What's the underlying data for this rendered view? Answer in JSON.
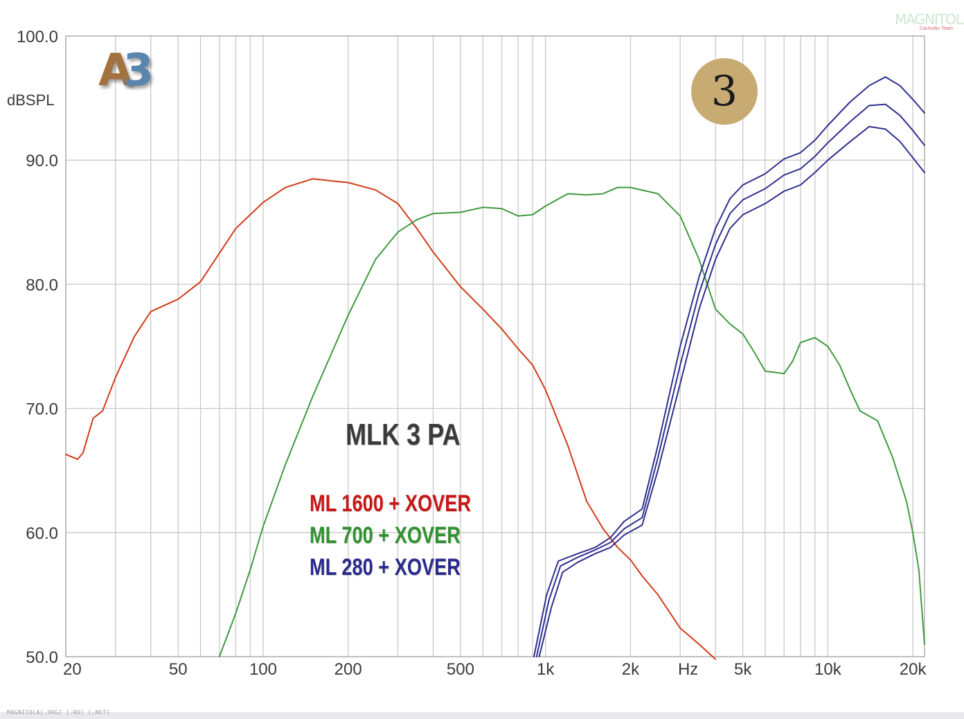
{
  "chart_data": {
    "type": "line",
    "x_scale": "log",
    "xlim": [
      20,
      22000
    ],
    "ylim": [
      50,
      100
    ],
    "grid": true,
    "ylabel": "dBSPL",
    "xlabel": "Hz",
    "x_ticks": [
      20,
      50,
      100,
      200,
      500,
      1000,
      2000,
      5000,
      10000,
      20000
    ],
    "x_tick_labels": [
      "20",
      "50",
      "100",
      "200",
      "500",
      "1k",
      "2k",
      "5k",
      "10k",
      "20k"
    ],
    "y_ticks": [
      50,
      60,
      70,
      80,
      90,
      100
    ],
    "y_tick_labels": [
      "50.0",
      "60.0",
      "70.0",
      "80.0",
      "90.0",
      "100.0"
    ],
    "annotation": "MLK 3 PA",
    "series": [
      {
        "name": "ML 1600 + XOVER",
        "color": "#d23a17",
        "points": [
          [
            20,
            66.3
          ],
          [
            22,
            65.9
          ],
          [
            23,
            66.4
          ],
          [
            25,
            69.2
          ],
          [
            27,
            69.8
          ],
          [
            30,
            72.5
          ],
          [
            35,
            75.8
          ],
          [
            40,
            77.8
          ],
          [
            50,
            78.8
          ],
          [
            60,
            80.2
          ],
          [
            70,
            82.5
          ],
          [
            80,
            84.5
          ],
          [
            100,
            86.6
          ],
          [
            120,
            87.8
          ],
          [
            150,
            88.5
          ],
          [
            180,
            88.3
          ],
          [
            200,
            88.2
          ],
          [
            250,
            87.6
          ],
          [
            300,
            86.5
          ],
          [
            350,
            84.5
          ],
          [
            400,
            82.6
          ],
          [
            500,
            79.8
          ],
          [
            600,
            78.0
          ],
          [
            700,
            76.4
          ],
          [
            800,
            74.8
          ],
          [
            900,
            73.5
          ],
          [
            1000,
            71.5
          ],
          [
            1200,
            67.0
          ],
          [
            1400,
            62.5
          ],
          [
            1600,
            60.3
          ],
          [
            1800,
            58.8
          ],
          [
            2000,
            57.8
          ],
          [
            2200,
            56.5
          ],
          [
            2500,
            55.0
          ],
          [
            3000,
            52.3
          ],
          [
            3500,
            51.0
          ],
          [
            4000,
            49.8
          ]
        ]
      },
      {
        "name": "ML 700 + XOVER",
        "color": "#3f9a3f",
        "points": [
          [
            70,
            50.0
          ],
          [
            80,
            53.5
          ],
          [
            90,
            57.0
          ],
          [
            100,
            60.5
          ],
          [
            120,
            65.5
          ],
          [
            150,
            71.0
          ],
          [
            200,
            77.5
          ],
          [
            250,
            82.0
          ],
          [
            300,
            84.2
          ],
          [
            350,
            85.2
          ],
          [
            400,
            85.7
          ],
          [
            500,
            85.8
          ],
          [
            600,
            86.2
          ],
          [
            700,
            86.1
          ],
          [
            800,
            85.5
          ],
          [
            900,
            85.6
          ],
          [
            1000,
            86.3
          ],
          [
            1200,
            87.3
          ],
          [
            1400,
            87.2
          ],
          [
            1600,
            87.3
          ],
          [
            1800,
            87.8
          ],
          [
            2000,
            87.8
          ],
          [
            2500,
            87.3
          ],
          [
            3000,
            85.5
          ],
          [
            3500,
            82.0
          ],
          [
            4000,
            78.0
          ],
          [
            4500,
            76.8
          ],
          [
            5000,
            76.0
          ],
          [
            5500,
            74.5
          ],
          [
            6000,
            73.0
          ],
          [
            7000,
            72.8
          ],
          [
            7500,
            73.8
          ],
          [
            8000,
            75.3
          ],
          [
            9000,
            75.7
          ],
          [
            10000,
            75.0
          ],
          [
            11000,
            73.5
          ],
          [
            12000,
            71.5
          ],
          [
            13000,
            69.8
          ],
          [
            15000,
            69.0
          ],
          [
            17000,
            66.0
          ],
          [
            19000,
            62.5
          ],
          [
            20000,
            60.0
          ],
          [
            21000,
            57.0
          ],
          [
            22000,
            51.0
          ]
        ]
      },
      {
        "name": "ML 280 + XOVER",
        "color": "#2e2e8f",
        "points": [
          [
            950,
            50.0
          ],
          [
            1050,
            54.0
          ],
          [
            1150,
            56.8
          ],
          [
            1300,
            57.6
          ],
          [
            1500,
            58.3
          ],
          [
            1700,
            58.8
          ],
          [
            1900,
            59.8
          ],
          [
            2200,
            60.6
          ],
          [
            2500,
            65.0
          ],
          [
            3000,
            72.0
          ],
          [
            3500,
            78.0
          ],
          [
            4000,
            82.0
          ],
          [
            4500,
            84.5
          ],
          [
            5000,
            85.6
          ],
          [
            6000,
            86.5
          ],
          [
            7000,
            87.5
          ],
          [
            8000,
            88.0
          ],
          [
            9000,
            89.0
          ],
          [
            10000,
            90.0
          ],
          [
            12000,
            91.5
          ],
          [
            14000,
            92.7
          ],
          [
            16000,
            92.5
          ],
          [
            18000,
            91.5
          ],
          [
            20000,
            90.2
          ],
          [
            22000,
            89.0
          ]
        ]
      },
      {
        "name": "",
        "color": "#2e2e8f",
        "points": [
          [
            930,
            50.0
          ],
          [
            1030,
            54.6
          ],
          [
            1130,
            57.3
          ],
          [
            1300,
            58.0
          ],
          [
            1500,
            58.6
          ],
          [
            1700,
            59.2
          ],
          [
            1900,
            60.3
          ],
          [
            2200,
            61.2
          ],
          [
            2500,
            66.0
          ],
          [
            3000,
            73.5
          ],
          [
            3500,
            79.3
          ],
          [
            4000,
            83.2
          ],
          [
            4500,
            85.7
          ],
          [
            5000,
            86.8
          ],
          [
            6000,
            87.7
          ],
          [
            7000,
            88.8
          ],
          [
            8000,
            89.3
          ],
          [
            9000,
            90.3
          ],
          [
            10000,
            91.4
          ],
          [
            12000,
            93.1
          ],
          [
            14000,
            94.4
          ],
          [
            16000,
            94.5
          ],
          [
            18000,
            93.6
          ],
          [
            20000,
            92.4
          ],
          [
            22000,
            91.2
          ]
        ]
      },
      {
        "name": "",
        "color": "#2e2e8f",
        "points": [
          [
            910,
            50.0
          ],
          [
            1010,
            55.0
          ],
          [
            1110,
            57.7
          ],
          [
            1300,
            58.3
          ],
          [
            1500,
            58.8
          ],
          [
            1700,
            59.6
          ],
          [
            1900,
            60.9
          ],
          [
            2200,
            61.9
          ],
          [
            2500,
            67.0
          ],
          [
            3000,
            75.0
          ],
          [
            3500,
            80.6
          ],
          [
            4000,
            84.5
          ],
          [
            4500,
            86.9
          ],
          [
            5000,
            88.0
          ],
          [
            6000,
            88.9
          ],
          [
            7000,
            90.1
          ],
          [
            8000,
            90.6
          ],
          [
            9000,
            91.6
          ],
          [
            10000,
            92.8
          ],
          [
            12000,
            94.7
          ],
          [
            14000,
            96.0
          ],
          [
            16000,
            96.7
          ],
          [
            18000,
            96.0
          ],
          [
            20000,
            94.9
          ],
          [
            22000,
            93.8
          ]
        ]
      }
    ]
  },
  "badges": {
    "a3_letter": "A",
    "a3_digit": "3",
    "number": "3"
  },
  "watermark": {
    "logo_word": "MAGNITOLA",
    "logo_sub": "CarAudio Team",
    "footer": "MAGNITOLA[.ORG] [.RU] [.NET]"
  }
}
